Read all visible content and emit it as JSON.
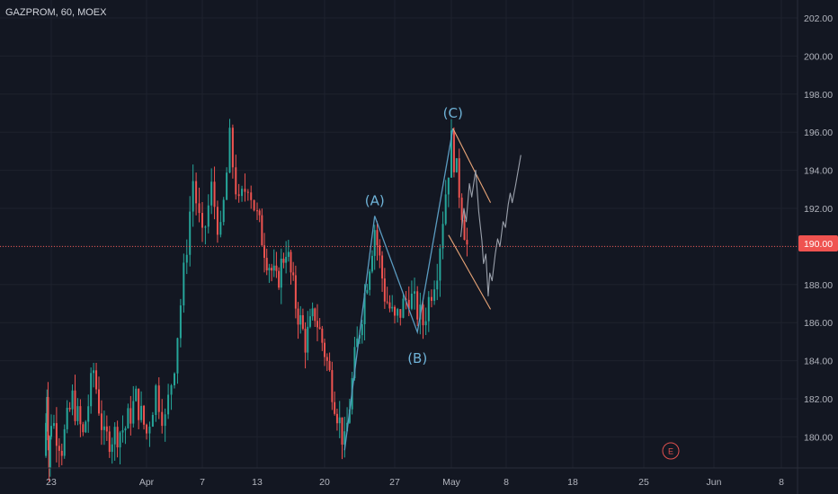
{
  "header": {
    "title": "GAZPROM, 60, MOEX"
  },
  "colors": {
    "background": "#131722",
    "grid": "#1e222d",
    "axis_text": "#b2b5be",
    "up": "#26a69a",
    "down": "#ef5350",
    "wave_line": "#5a9bc0",
    "wave_label": "#6fb3d8",
    "channel": "#e8a477",
    "projection": "#9aa0ab",
    "price_line": "#ef5350"
  },
  "chart_data": {
    "type": "candlestick",
    "symbol": "GAZPROM",
    "interval": "60",
    "exchange": "MOEX",
    "y_axis": {
      "ticks": [
        "202.00",
        "200.00",
        "198.00",
        "196.00",
        "194.00",
        "192.00",
        "190.00",
        "188.00",
        "186.00",
        "184.00",
        "182.00",
        "180.00"
      ],
      "range": [
        178,
        203
      ]
    },
    "x_axis": {
      "ticks": [
        "23",
        "Apr",
        "7",
        "13",
        "20",
        "27",
        "May",
        "8",
        "18",
        "25",
        "Jun",
        "8"
      ]
    },
    "current_price": "190.00",
    "ohlc_path": [
      {
        "date": "Mar 20",
        "price": 179.0
      },
      {
        "date": "Mar 21",
        "price": 182.5
      },
      {
        "date": "Mar 22",
        "price": 178.5
      },
      {
        "date": "Mar 23",
        "price": 181.0
      },
      {
        "date": "Mar 24",
        "price": 179.5
      },
      {
        "date": "Mar 25",
        "price": 182.0
      },
      {
        "date": "Mar 26",
        "price": 180.0
      },
      {
        "date": "Mar 27",
        "price": 183.5
      },
      {
        "date": "Mar 28",
        "price": 179.8
      },
      {
        "date": "Mar 30",
        "price": 180.5
      },
      {
        "date": "Mar 31",
        "price": 182.0
      },
      {
        "date": "Apr 1",
        "price": 180.2
      },
      {
        "date": "Apr 2",
        "price": 182.5
      },
      {
        "date": "Apr 3",
        "price": 180.8
      },
      {
        "date": "Apr 4",
        "price": 184.0
      },
      {
        "date": "Apr 5",
        "price": 188.5
      },
      {
        "date": "Apr 6",
        "price": 193.5
      },
      {
        "date": "Apr 7",
        "price": 190.2
      },
      {
        "date": "Apr 8",
        "price": 193.0
      },
      {
        "date": "Apr 9",
        "price": 190.5
      },
      {
        "date": "Apr 10",
        "price": 195.5
      },
      {
        "date": "Apr 11",
        "price": 192.0
      },
      {
        "date": "Apr 12",
        "price": 193.5
      },
      {
        "date": "Apr 13",
        "price": 191.5
      },
      {
        "date": "Apr 14",
        "price": 189.5
      },
      {
        "date": "Apr 15",
        "price": 188.0
      },
      {
        "date": "Apr 16",
        "price": 190.0
      },
      {
        "date": "Apr 17",
        "price": 187.0
      },
      {
        "date": "Apr 18",
        "price": 185.0
      },
      {
        "date": "Apr 19",
        "price": 186.5
      },
      {
        "date": "Apr 20",
        "price": 184.5
      },
      {
        "date": "Apr 21",
        "price": 182.0
      },
      {
        "date": "Apr 22",
        "price": 179.5
      },
      {
        "date": "Apr 23",
        "price": 184.0
      },
      {
        "date": "Apr 24",
        "price": 187.5
      },
      {
        "date": "Apr 25",
        "price": 191.0
      },
      {
        "date": "Apr 26",
        "price": 187.5
      },
      {
        "date": "Apr 27",
        "price": 186.0
      },
      {
        "date": "Apr 28",
        "price": 187.5
      },
      {
        "date": "Apr 29",
        "price": 186.0
      },
      {
        "date": "Apr 30",
        "price": 189.0
      },
      {
        "date": "May 1",
        "price": 195.5
      },
      {
        "date": "May 2",
        "price": 193.0
      },
      {
        "date": "May 3",
        "price": 190.0
      }
    ],
    "waves": [
      {
        "label": "(A)",
        "date": "Apr 25",
        "price": 191.6,
        "label_position": "above"
      },
      {
        "label": "(B)",
        "date": "Apr 28.6",
        "price": 185.5,
        "label_position": "below"
      },
      {
        "label": "(C)",
        "date": "May 1.2",
        "price": 196.2,
        "label_position": "above"
      }
    ],
    "earnings_marker": "E"
  }
}
